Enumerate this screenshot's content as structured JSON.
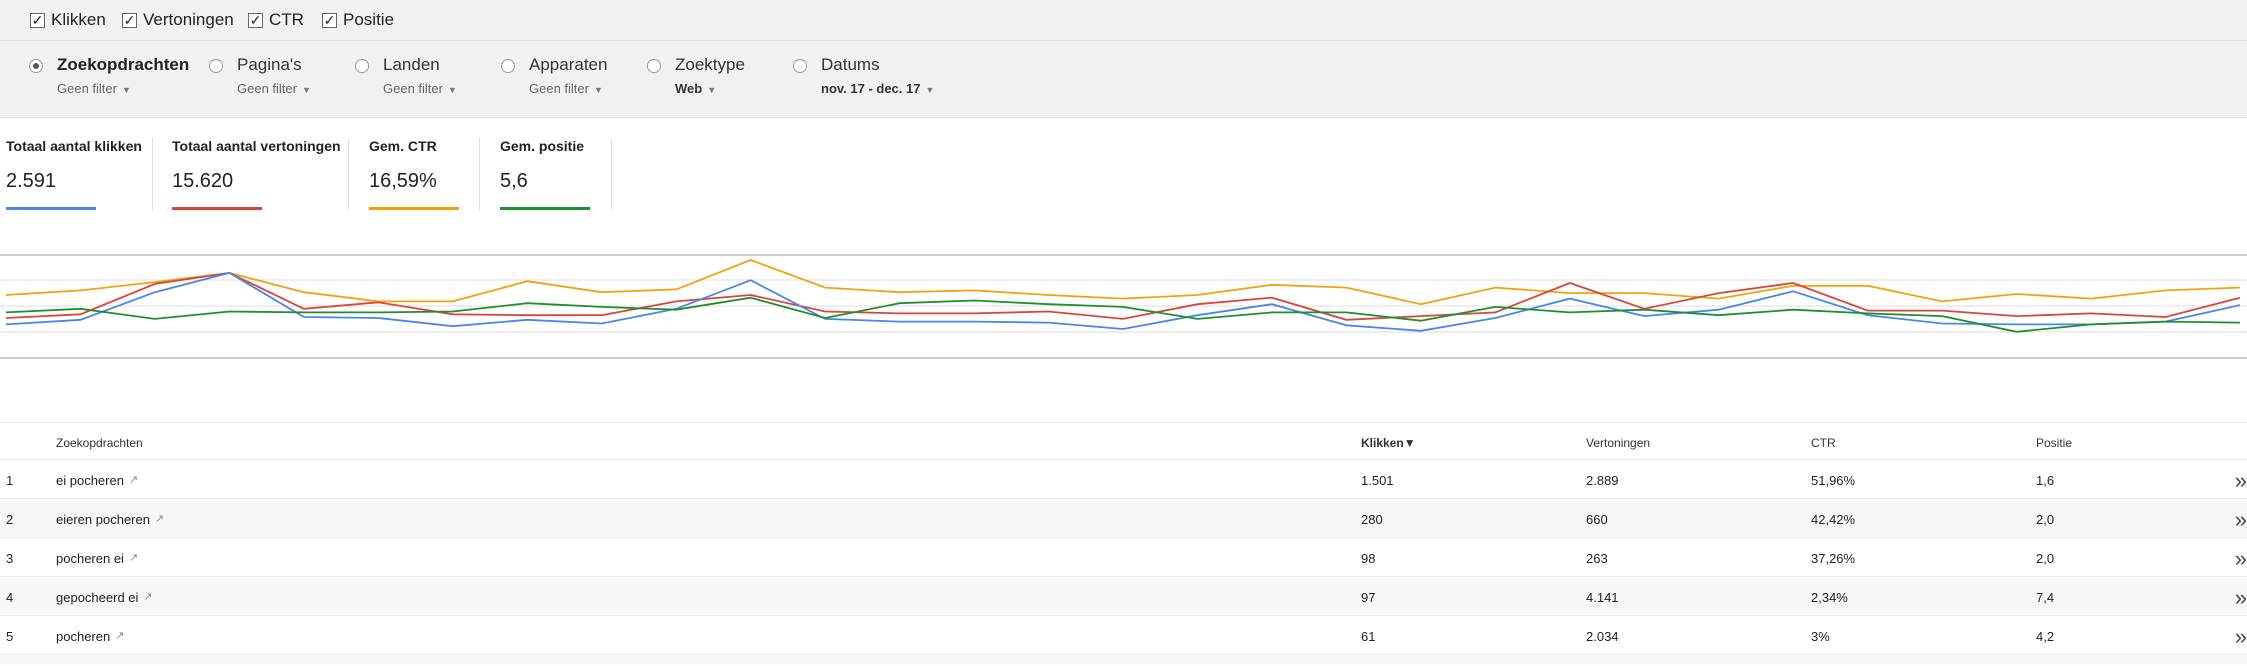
{
  "metric_toggles": [
    {
      "label": "Klikken",
      "checked": true
    },
    {
      "label": "Vertoningen",
      "checked": true
    },
    {
      "label": "CTR",
      "checked": true
    },
    {
      "label": "Positie",
      "checked": true
    }
  ],
  "checkmark_glyph": "✓",
  "filter_groups": [
    {
      "label": "Zoekopdrachten",
      "sub": "Geen filter",
      "selected": true
    },
    {
      "label": "Pagina's",
      "sub": "Geen filter",
      "selected": false
    },
    {
      "label": "Landen",
      "sub": "Geen filter",
      "selected": false
    },
    {
      "label": "Apparaten",
      "sub": "Geen filter",
      "selected": false
    },
    {
      "label": "Zoektype",
      "sub": "Web",
      "selected": false
    },
    {
      "label": "Datums",
      "sub": "nov. 17 - dec. 17",
      "selected": false
    }
  ],
  "caret_glyph": "▼",
  "metrics": [
    {
      "label": "Totaal aantal klikken",
      "value": "2.591",
      "color": "#4a86e8"
    },
    {
      "label": "Totaal aantal vertoningen",
      "value": "15.620",
      "color": "#d9453d"
    },
    {
      "label": "Gem. CTR",
      "value": "16,59%",
      "color": "#f0a30a"
    },
    {
      "label": "Gem. positie",
      "value": "5,6",
      "color": "#1e8e2e"
    }
  ],
  "chart_data": {
    "type": "line",
    "grid": true,
    "series": [
      {
        "color": "#f0a30a",
        "values": [
          0.62,
          0.67,
          0.76,
          0.86,
          0.65,
          0.55,
          0.55,
          0.77,
          0.65,
          0.68,
          1.0,
          0.7,
          0.65,
          0.67,
          0.62,
          0.58,
          0.62,
          0.73,
          0.7,
          0.52,
          0.7,
          0.64,
          0.64,
          0.58,
          0.72,
          0.72,
          0.55,
          0.63,
          0.58,
          0.67,
          0.7
        ]
      },
      {
        "color": "#d9453d",
        "values": [
          0.37,
          0.41,
          0.74,
          0.86,
          0.47,
          0.54,
          0.41,
          0.4,
          0.4,
          0.55,
          0.62,
          0.44,
          0.42,
          0.42,
          0.44,
          0.36,
          0.52,
          0.59,
          0.35,
          0.39,
          0.43,
          0.75,
          0.47,
          0.64,
          0.75,
          0.45,
          0.45,
          0.39,
          0.42,
          0.38,
          0.59
        ]
      },
      {
        "color": "#4a86e8",
        "values": [
          0.3,
          0.35,
          0.65,
          0.86,
          0.38,
          0.37,
          0.28,
          0.35,
          0.31,
          0.47,
          0.78,
          0.36,
          0.33,
          0.33,
          0.32,
          0.25,
          0.4,
          0.52,
          0.29,
          0.23,
          0.37,
          0.58,
          0.39,
          0.46,
          0.66,
          0.4,
          0.31,
          0.3,
          0.3,
          0.33,
          0.51
        ]
      },
      {
        "color": "#1e8e2e",
        "values": [
          0.43,
          0.47,
          0.36,
          0.44,
          0.43,
          0.43,
          0.44,
          0.53,
          0.49,
          0.46,
          0.59,
          0.37,
          0.53,
          0.56,
          0.52,
          0.49,
          0.36,
          0.43,
          0.43,
          0.34,
          0.49,
          0.43,
          0.46,
          0.4,
          0.46,
          0.42,
          0.39,
          0.22,
          0.3,
          0.33,
          0.32
        ]
      }
    ]
  },
  "table": {
    "headers": {
      "query": "Zoekopdrachten",
      "clicks": "Klikken",
      "impressions": "Vertoningen",
      "ctr": "CTR",
      "position": "Positie"
    },
    "sort_glyph": "▼",
    "ext_glyph": "↗",
    "more_glyph": "»",
    "rows": [
      {
        "n": "1",
        "query": "ei pocheren",
        "clicks": "1.501",
        "impressions": "2.889",
        "ctr": "51,96%",
        "position": "1,6"
      },
      {
        "n": "2",
        "query": "eieren pocheren",
        "clicks": "280",
        "impressions": "660",
        "ctr": "42,42%",
        "position": "2,0"
      },
      {
        "n": "3",
        "query": "pocheren ei",
        "clicks": "98",
        "impressions": "263",
        "ctr": "37,26%",
        "position": "2,0"
      },
      {
        "n": "4",
        "query": "gepocheerd ei",
        "clicks": "97",
        "impressions": "4.141",
        "ctr": "2,34%",
        "position": "7,4"
      },
      {
        "n": "5",
        "query": "pocheren",
        "clicks": "61",
        "impressions": "2.034",
        "ctr": "3%",
        "position": "4,2"
      }
    ]
  }
}
